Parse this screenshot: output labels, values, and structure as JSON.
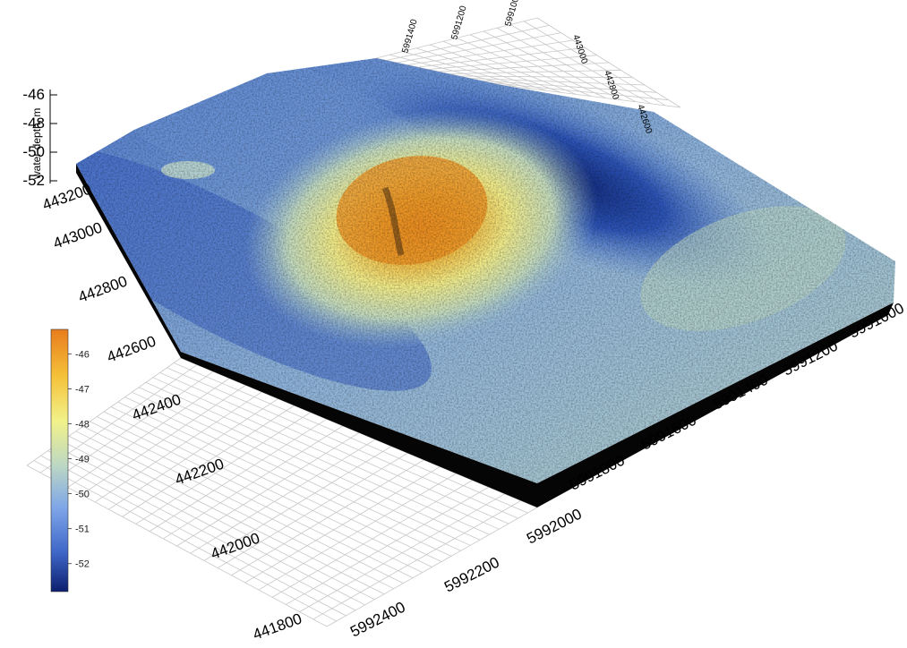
{
  "chart_data": {
    "type": "heatmap",
    "subtype": "3d-surface",
    "zlabel": "water depth, m",
    "z_ticks": [
      "-46",
      "-48",
      "-50",
      "-52"
    ],
    "x_ticks_left": [
      "443200",
      "443000",
      "442800",
      "442600",
      "442400",
      "442200",
      "442000",
      "441800"
    ],
    "y_ticks_front": [
      "5992400",
      "5992200",
      "5992000",
      "5991800",
      "5991600",
      "5991400",
      "5991200",
      "5991000"
    ],
    "back_y_ticks": [
      "5991000",
      "5991200",
      "5991400"
    ],
    "back_x_ticks": [
      "443000",
      "442800",
      "442600"
    ],
    "colorbar": {
      "min": -52.8,
      "max": -45.3,
      "ticks": [
        "-46",
        "-47",
        "-48",
        "-49",
        "-50",
        "-51",
        "-52"
      ],
      "colors": [
        "#0c1f6e",
        "#3f67c8",
        "#7fa6e8",
        "#bcd7c4",
        "#f2f28a",
        "#f5c23a",
        "#e87c1c"
      ]
    },
    "surface": {
      "feature": "mound",
      "peak_depth": -45.5,
      "trough_depth": -52.6,
      "background_depth": -50.5
    },
    "grid": true
  }
}
